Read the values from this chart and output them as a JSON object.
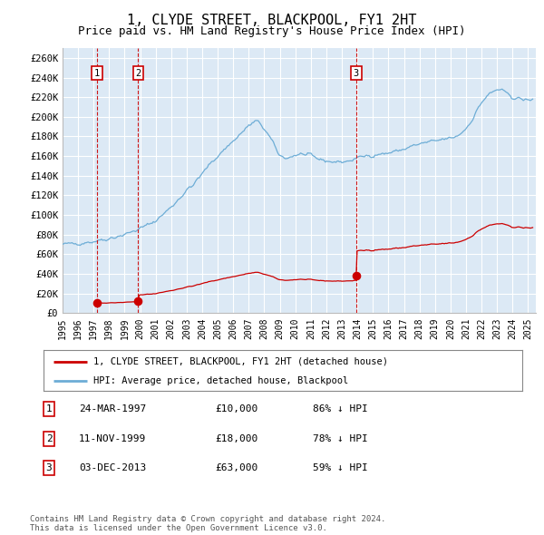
{
  "title": "1, CLYDE STREET, BLACKPOOL, FY1 2HT",
  "subtitle": "Price paid vs. HM Land Registry's House Price Index (HPI)",
  "title_fontsize": 11,
  "subtitle_fontsize": 9,
  "ylim": [
    0,
    270000
  ],
  "yticks": [
    0,
    20000,
    40000,
    60000,
    80000,
    100000,
    120000,
    140000,
    160000,
    180000,
    200000,
    220000,
    240000,
    260000
  ],
  "ytick_labels": [
    "£0",
    "£20K",
    "£40K",
    "£60K",
    "£80K",
    "£100K",
    "£120K",
    "£140K",
    "£160K",
    "£180K",
    "£200K",
    "£220K",
    "£240K",
    "£260K"
  ],
  "background_color": "#ffffff",
  "plot_bg_color": "#dce9f5",
  "grid_color": "#ffffff",
  "hpi_line_color": "#6dadd6",
  "price_line_color": "#cc0000",
  "vline_color": "#cc0000",
  "transaction_color": "#cc0000",
  "transactions": [
    {
      "date_num": 1997.23,
      "price": 10000,
      "label": "1"
    },
    {
      "date_num": 1999.87,
      "price": 18000,
      "label": "2"
    },
    {
      "date_num": 2013.92,
      "price": 63000,
      "label": "3"
    }
  ],
  "table_rows": [
    {
      "label": "1",
      "date": "24-MAR-1997",
      "price": "£10,000",
      "hpi": "86% ↓ HPI"
    },
    {
      "label": "2",
      "date": "11-NOV-1999",
      "price": "£18,000",
      "hpi": "78% ↓ HPI"
    },
    {
      "label": "3",
      "date": "03-DEC-2013",
      "price": "£63,000",
      "hpi": "59% ↓ HPI"
    }
  ],
  "legend_entries": [
    "1, CLYDE STREET, BLACKPOOL, FY1 2HT (detached house)",
    "HPI: Average price, detached house, Blackpool"
  ],
  "footer": "Contains HM Land Registry data © Crown copyright and database right 2024.\nThis data is licensed under the Open Government Licence v3.0.",
  "xmin": 1995.0,
  "xmax": 2025.5,
  "xtick_years": [
    1995,
    1996,
    1997,
    1998,
    1999,
    2000,
    2001,
    2002,
    2003,
    2004,
    2005,
    2006,
    2007,
    2008,
    2009,
    2010,
    2011,
    2012,
    2013,
    2014,
    2015,
    2016,
    2017,
    2018,
    2019,
    2020,
    2021,
    2022,
    2023,
    2024,
    2025
  ],
  "hpi_anchors_t": [
    1995.0,
    1996.0,
    1997.0,
    1998.0,
    1999.0,
    2000.0,
    2001.0,
    2002.0,
    2003.0,
    2003.5,
    2004.5,
    2005.5,
    2006.5,
    2007.0,
    2007.5,
    2008.0,
    2008.5,
    2009.0,
    2009.5,
    2010.0,
    2010.5,
    2011.0,
    2011.5,
    2012.0,
    2012.5,
    2013.0,
    2013.5,
    2014.0,
    2014.5,
    2015.0,
    2015.5,
    2016.0,
    2016.5,
    2017.0,
    2017.5,
    2018.0,
    2018.5,
    2019.0,
    2019.5,
    2020.0,
    2020.5,
    2021.0,
    2021.5,
    2022.0,
    2022.5,
    2023.0,
    2023.5,
    2024.0,
    2024.5,
    2025.0
  ],
  "hpi_anchors_v": [
    70000,
    71000,
    73000,
    76000,
    80000,
    86000,
    94000,
    108000,
    125000,
    132000,
    152000,
    168000,
    183000,
    191000,
    196000,
    188000,
    175000,
    160000,
    158000,
    161000,
    162000,
    160000,
    157000,
    155000,
    154000,
    154000,
    155000,
    158000,
    160000,
    161000,
    162000,
    163000,
    165000,
    167000,
    170000,
    172000,
    174000,
    175000,
    177000,
    178000,
    181000,
    188000,
    200000,
    215000,
    223000,
    228000,
    225000,
    220000,
    218000,
    217000
  ]
}
